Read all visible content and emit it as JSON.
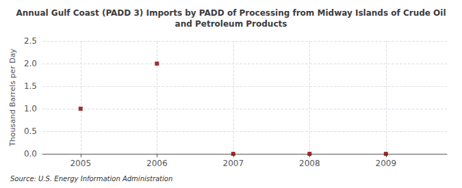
{
  "chart_data": {
    "type": "scatter",
    "title": "Annual Gulf Coast (PADD 3) Imports by PADD of Processing from Midway Islands of Crude Oil\nand Petroleum Products",
    "ylabel": "Thousand Barrels per Day",
    "source": "Source: U.S. Energy Information Administration",
    "x": [
      2005,
      2006,
      2007,
      2008,
      2009
    ],
    "values": [
      1.0,
      2.0,
      0.0,
      0.0,
      0.0
    ],
    "color": "#8B0000",
    "marker": "square",
    "xlim": [
      2004.5,
      2009.8
    ],
    "xticks": [
      2005,
      2006,
      2007,
      2008,
      2009
    ],
    "ylim": [
      0.0,
      2.5
    ],
    "yticks": [
      {
        "value": 0.0,
        "label": "0.0"
      },
      0.5,
      {
        "value": 1.0,
        "label": "1.0"
      },
      1.5,
      {
        "value": 2.0,
        "label": "2.0"
      },
      2.5
    ],
    "grid": true
  }
}
